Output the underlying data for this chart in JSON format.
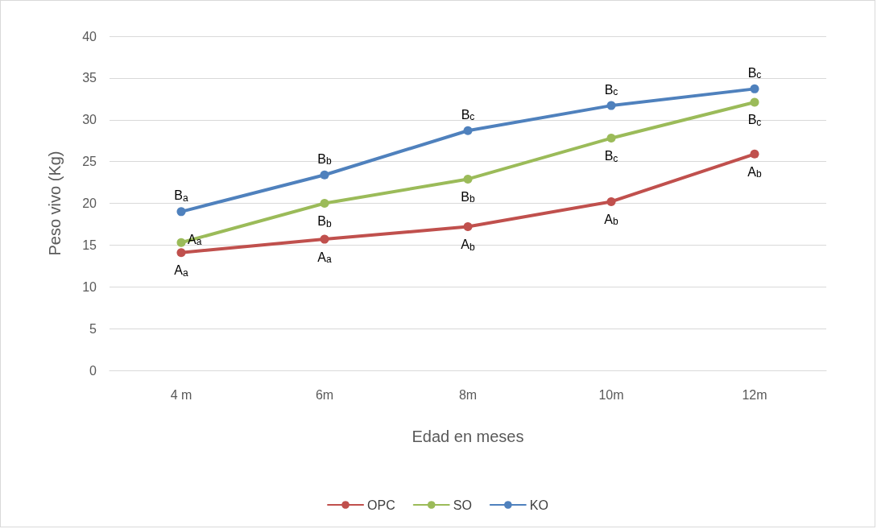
{
  "chart_data": {
    "type": "line",
    "xlabel": "Edad en meses",
    "ylabel": "Peso vivo (Kg)",
    "categories": [
      "4 m",
      "6m",
      "8m",
      "10m",
      "12m"
    ],
    "series": [
      {
        "name": "OPC",
        "color": "#c0504d",
        "values": [
          14.1,
          15.7,
          17.2,
          20.2,
          25.9
        ]
      },
      {
        "name": "SO",
        "color": "#9bbb59",
        "values": [
          15.3,
          20.0,
          22.9,
          27.8,
          32.1
        ]
      },
      {
        "name": "KO",
        "color": "#4f81bd",
        "values": [
          19.0,
          23.4,
          28.7,
          31.7,
          33.7
        ]
      }
    ],
    "ylim": [
      0,
      40
    ],
    "yticks": [
      0,
      5,
      10,
      15,
      20,
      25,
      30,
      35,
      40
    ],
    "grid": "y",
    "legend": "bottom",
    "marker": "circle",
    "line_style": "solid",
    "annotations": [
      {
        "text": "A$_{a}$",
        "x": "4 m",
        "y": 14.1
      },
      {
        "text": "A$_{a}$",
        "x": "6m",
        "y": 15.7
      },
      {
        "text": "A$_{b}$",
        "x": "8m",
        "y": 17.2
      },
      {
        "text": "A$_{b}$",
        "x": "10m",
        "y": 20.2
      },
      {
        "text": "A$_{b}$",
        "x": "12m",
        "y": 25.9
      },
      {
        "text": "A$_{a}$",
        "x": "4 m",
        "y": 15.3
      },
      {
        "text": "B$_{b}$",
        "x": "6m",
        "y": 20.0
      },
      {
        "text": "B$_{b}$",
        "x": "8m",
        "y": 22.9
      },
      {
        "text": "B$_{c}$",
        "x": "10m",
        "y": 27.8
      },
      {
        "text": "B$_{c}$",
        "x": "12m",
        "y": 32.1
      },
      {
        "text": "B$_{a}$",
        "x": "4 m",
        "y": 19.0
      },
      {
        "text": "B$_{b}$",
        "x": "6m",
        "y": 23.4
      },
      {
        "text": "B$_{c}$",
        "x": "8m",
        "y": 28.7
      },
      {
        "text": "B$_{c}$",
        "x": "10m",
        "y": 31.7
      },
      {
        "text": "B$_{c}$",
        "x": "12m",
        "y": 33.7
      }
    ]
  }
}
